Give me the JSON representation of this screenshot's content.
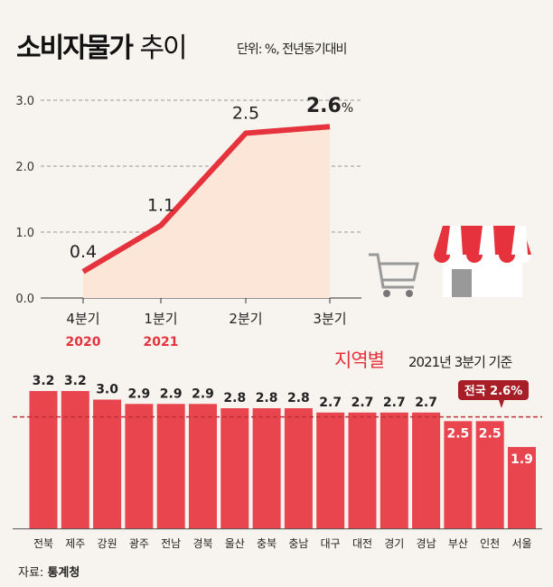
{
  "header": {
    "title_bold": "소비자물가",
    "title_light": "추이",
    "unit": "단위: %, 전년동기대비"
  },
  "colors": {
    "accent": "#e5323c",
    "bar": "#e8454e",
    "area": "#fbe6d8",
    "badge": "#a81e27"
  },
  "chart_data": [
    {
      "type": "line",
      "categories": [
        "4분기",
        "1분기",
        "2분기",
        "3분기"
      ],
      "year_labels": [
        "2020",
        "2021",
        "",
        ""
      ],
      "values": [
        0.4,
        1.1,
        2.5,
        2.6
      ],
      "data_labels": [
        "0.4",
        "1.1",
        "2.5",
        "2.6"
      ],
      "last_suffix": "%",
      "yticks": [
        "0.0",
        "1.0",
        "2.0",
        "3.0"
      ],
      "ylim": [
        0,
        3
      ],
      "grid": true
    },
    {
      "type": "bar",
      "title": "지역별",
      "subtitle": "2021년 3분기 기준",
      "categories": [
        "전북",
        "제주",
        "강원",
        "광주",
        "전남",
        "경북",
        "울산",
        "충북",
        "충남",
        "대구",
        "대전",
        "경기",
        "경남",
        "부산",
        "인천",
        "서울"
      ],
      "values": [
        3.2,
        3.2,
        3.0,
        2.9,
        2.9,
        2.9,
        2.8,
        2.8,
        2.8,
        2.7,
        2.7,
        2.7,
        2.7,
        2.5,
        2.5,
        1.9
      ],
      "data_labels": [
        "3.2",
        "3.2",
        "3.0",
        "2.9",
        "2.9",
        "2.9",
        "2.8",
        "2.8",
        "2.8",
        "2.7",
        "2.7",
        "2.7",
        "2.7",
        "2.5",
        "2.5",
        "1.9"
      ],
      "reference": {
        "value": 2.6,
        "label": "전국 2.6%"
      }
    }
  ],
  "source": {
    "label": "자료:",
    "value": "통계청"
  }
}
